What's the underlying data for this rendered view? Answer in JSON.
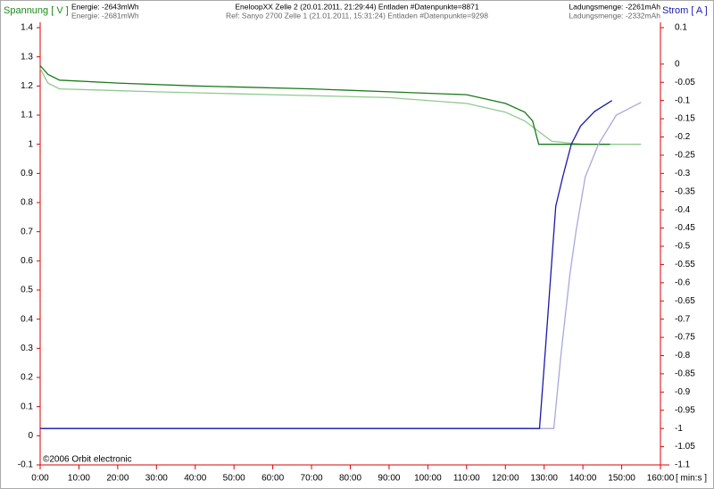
{
  "chart_data": {
    "type": "line",
    "y_label": "Spannung [ V ]",
    "y2_label": "Strom [ A ]",
    "x_label": "[ min:s ]",
    "energy_1": "Energie: -2643mWh",
    "energy_2": "Energie: -2681mWh",
    "title": "EneloopXX Zelle 2 (20.01.2011, 21:29:44)   Entladen  #Datenpunkte=8871",
    "subtitle": "Ref: Sanyo 2700  Zelle 1 (21.01.2011, 15:31:24)   Entladen  #Datenpunkte=9298",
    "charge_1": "Ladungsmenge: -2261mAh",
    "charge_2": "Ladungsmenge: -2332mAh",
    "copyright": "©2006 Orbit electronic",
    "xlim": [
      0,
      160
    ],
    "xticks": [
      {
        "value": 0,
        "label": "0:00"
      },
      {
        "value": 10,
        "label": "10:00"
      },
      {
        "value": 20,
        "label": "20:00"
      },
      {
        "value": 30,
        "label": "30:00"
      },
      {
        "value": 40,
        "label": "40:00"
      },
      {
        "value": 50,
        "label": "50:00"
      },
      {
        "value": 60,
        "label": "60:00"
      },
      {
        "value": 70,
        "label": "70:00"
      },
      {
        "value": 80,
        "label": "80:00"
      },
      {
        "value": 90,
        "label": "90:00"
      },
      {
        "value": 100,
        "label": "100:00"
      },
      {
        "value": 110,
        "label": "110:00"
      },
      {
        "value": 120,
        "label": "120:00"
      },
      {
        "value": 130,
        "label": "130:00"
      },
      {
        "value": 140,
        "label": "140:00"
      },
      {
        "value": 150,
        "label": "150:00"
      },
      {
        "value": 160,
        "label": "160:00"
      }
    ],
    "ylim": [
      -0.1,
      1.4
    ],
    "yticks": [
      1.4,
      1.3,
      1.2,
      1.1,
      1,
      0.9,
      0.8,
      0.7,
      0.6,
      0.5,
      0.4,
      0.3,
      0.2,
      0.1,
      0,
      -0.1
    ],
    "y2lim": [
      -1.1,
      0.1
    ],
    "y2ticks": [
      0.1,
      0,
      -0.05,
      -0.1,
      -0.15,
      -0.2,
      -0.25,
      -0.3,
      -0.35,
      -0.4,
      -0.45,
      -0.5,
      -0.55,
      -0.6,
      -0.65,
      -0.7,
      -0.75,
      -0.8,
      -0.85,
      -0.9,
      -0.95,
      -1,
      -1.05,
      -1.1
    ],
    "series": [
      {
        "color": "#1a7a1a",
        "x": [
          0,
          2,
          5,
          20,
          40,
          70,
          90,
          110,
          120,
          125,
          127,
          128.6,
          135,
          147
        ],
        "values": [
          1.27,
          1.24,
          1.22,
          1.21,
          1.2,
          1.19,
          1.18,
          1.17,
          1.14,
          1.11,
          1.08,
          1.0,
          1.0,
          1.0
        ]
      },
      {
        "color": "#8fc98f",
        "x": [
          0,
          2,
          5,
          30,
          60,
          90,
          110,
          120,
          125,
          129,
          132,
          140,
          155
        ],
        "values": [
          1.26,
          1.21,
          1.19,
          1.18,
          1.17,
          1.16,
          1.14,
          1.11,
          1.08,
          1.04,
          1.01,
          1.0,
          1.0
        ]
      },
      {
        "color": "#1a1aa8",
        "axis": "y2",
        "x": [
          0,
          128.8,
          130.2,
          132,
          133,
          134.8,
          137,
          139.4,
          143,
          147.5
        ],
        "values": [
          -1,
          -1,
          -0.8,
          -0.535,
          -0.39,
          -0.31,
          -0.22,
          -0.17,
          -0.13,
          -0.1
        ]
      },
      {
        "color": "#a8a8dd",
        "axis": "y2",
        "x": [
          0,
          132.5,
          134.3,
          136.6,
          138.2,
          140.6,
          144,
          148.6,
          155
        ],
        "values": [
          -1,
          -1,
          -0.8,
          -0.58,
          -0.46,
          -0.31,
          -0.22,
          -0.14,
          -0.105
        ]
      }
    ]
  }
}
